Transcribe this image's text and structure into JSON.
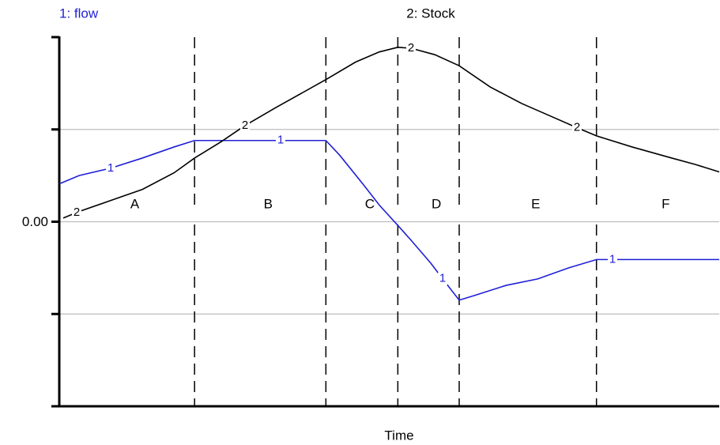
{
  "chart_data": {
    "type": "line",
    "x_label": "Time",
    "xlim": [
      0,
      100
    ],
    "ylim": [
      -2,
      2
    ],
    "yticks": [
      {
        "value": 0,
        "label": "0.00"
      }
    ],
    "yticks_unlabeled": [
      -2,
      -1,
      1,
      2
    ],
    "grid": true,
    "phase_boundaries": [
      20.5,
      40.4,
      51.3,
      60.6,
      81.4
    ],
    "phases": [
      "A",
      "B",
      "C",
      "D",
      "E",
      "F"
    ],
    "series": [
      {
        "name": "1: flow",
        "marker": "1",
        "color": "#1f1fd6",
        "label_color": "#1f1fd6",
        "x": [
          0,
          3,
          7.8,
          12.6,
          17.4,
          20.5,
          40.4,
          42.5,
          46.1,
          48.5,
          51.3,
          53.3,
          56.3,
          58.1,
          60.6,
          62.9,
          67.7,
          72.5,
          77.2,
          81.4,
          100
        ],
        "values": [
          0.41,
          0.5,
          0.58,
          0.69,
          0.81,
          0.88,
          0.88,
          0.72,
          0.4,
          0.18,
          -0.04,
          -0.2,
          -0.45,
          -0.62,
          -0.85,
          -0.8,
          -0.69,
          -0.62,
          -0.5,
          -0.41,
          -0.41
        ]
      },
      {
        "name": "2: Stock",
        "marker": "2",
        "color": "#000000",
        "label_color": "#000000",
        "x": [
          0.6,
          3,
          7.8,
          12.6,
          17.4,
          20.5,
          24.6,
          28.1,
          32.9,
          40.4,
          44.9,
          48.5,
          51.3,
          53.3,
          56.9,
          60.6,
          65.3,
          70.1,
          74.9,
          78.4,
          81.4,
          86.8,
          92.8,
          96.4,
          100
        ],
        "values": [
          0.04,
          0.11,
          0.23,
          0.35,
          0.53,
          0.69,
          0.87,
          1.04,
          1.24,
          1.54,
          1.73,
          1.84,
          1.89,
          1.88,
          1.81,
          1.69,
          1.46,
          1.28,
          1.13,
          1.02,
          0.93,
          0.81,
          0.69,
          0.62,
          0.54
        ]
      }
    ]
  }
}
